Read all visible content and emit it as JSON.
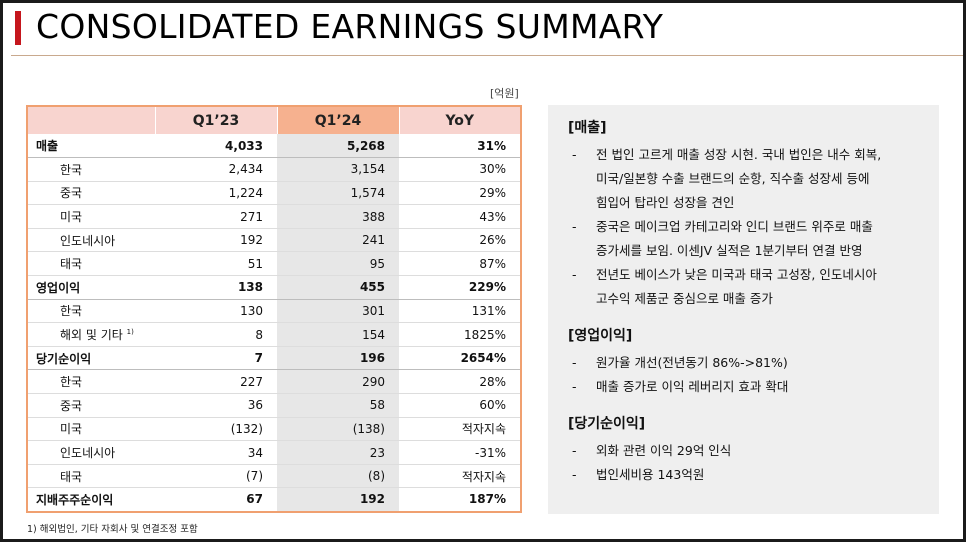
{
  "title": "CONSOLIDATED EARNINGS SUMMARY",
  "unit": "[억원]",
  "table": {
    "headers": [
      "Q1’23",
      "Q1’24",
      "YoY"
    ],
    "rows": [
      {
        "label": "매출",
        "q1_23": "4,033",
        "q1_24": "5,268",
        "yoy": "31%",
        "major": true
      },
      {
        "label": "한국",
        "q1_23": "2,434",
        "q1_24": "3,154",
        "yoy": "30%",
        "major": false
      },
      {
        "label": "중국",
        "q1_23": "1,224",
        "q1_24": "1,574",
        "yoy": "29%",
        "major": false
      },
      {
        "label": "미국",
        "q1_23": "271",
        "q1_24": "388",
        "yoy": "43%",
        "major": false
      },
      {
        "label": "인도네시아",
        "q1_23": "192",
        "q1_24": "241",
        "yoy": "26%",
        "major": false
      },
      {
        "label": "태국",
        "q1_23": "51",
        "q1_24": "95",
        "yoy": "87%",
        "major": false
      },
      {
        "label": "영업이익",
        "q1_23": "138",
        "q1_24": "455",
        "yoy": "229%",
        "major": true
      },
      {
        "label": "한국",
        "q1_23": "130",
        "q1_24": "301",
        "yoy": "131%",
        "major": false
      },
      {
        "label": "해외 및 기타",
        "sup": "1)",
        "q1_23": "8",
        "q1_24": "154",
        "yoy": "1825%",
        "major": false
      },
      {
        "label": "당기순이익",
        "q1_23": "7",
        "q1_24": "196",
        "yoy": "2654%",
        "major": true
      },
      {
        "label": "한국",
        "q1_23": "227",
        "q1_24": "290",
        "yoy": "28%",
        "major": false
      },
      {
        "label": "중국",
        "q1_23": "36",
        "q1_24": "58",
        "yoy": "60%",
        "major": false
      },
      {
        "label": "미국",
        "q1_23": "(132)",
        "q1_24": "(138)",
        "yoy": "적자지속",
        "major": false
      },
      {
        "label": "인도네시아",
        "q1_23": "34",
        "q1_24": "23",
        "yoy": "-31%",
        "major": false
      },
      {
        "label": "태국",
        "q1_23": "(7)",
        "q1_24": "(8)",
        "yoy": "적자지속",
        "major": false
      },
      {
        "label": "지배주주순이익",
        "q1_23": "67",
        "q1_24": "192",
        "yoy": "187%",
        "major": true
      }
    ]
  },
  "footnote": "1) 해외법인, 기타 자회사 및 연결조정 포함",
  "commentary": [
    {
      "heading": "[매출]",
      "bullets": [
        [
          "전 법인 고르게 매출 성장 시현. 국내 법인은 내수 회복,",
          "미국/일본향 수출 브랜드의 순항, 직수출 성장세 등에",
          "힘입어 탑라인 성장을 견인"
        ],
        [
          "중국은 메이크업 카테고리와 인디 브랜드 위주로 매출",
          "증가세를 보임. 이센JV 실적은 1분기부터 연결 반영"
        ],
        [
          "전년도 베이스가 낮은 미국과 태국 고성장, 인도네시아",
          "고수익 제품군 중심으로 매출 증가"
        ]
      ]
    },
    {
      "heading": "[영업이익]",
      "bullets": [
        [
          "원가율 개선(전년동기 86%->81%)"
        ],
        [
          "매출 증가로 이익 레버리지 효과 확대"
        ]
      ]
    },
    {
      "heading": "[당기순이익]",
      "bullets": [
        [
          "외화 관련 이익 29억 인식"
        ],
        [
          "법인세비용 143억원"
        ]
      ]
    }
  ],
  "bullet_marker": "-",
  "colors": {
    "accent_red": "#c5161d",
    "header_pink": "#f8d4cf",
    "header_highlight": "#f6b18f",
    "table_border": "#f0a070",
    "highlight_column": "#e7e7e7",
    "panel_bg": "#efefef"
  }
}
